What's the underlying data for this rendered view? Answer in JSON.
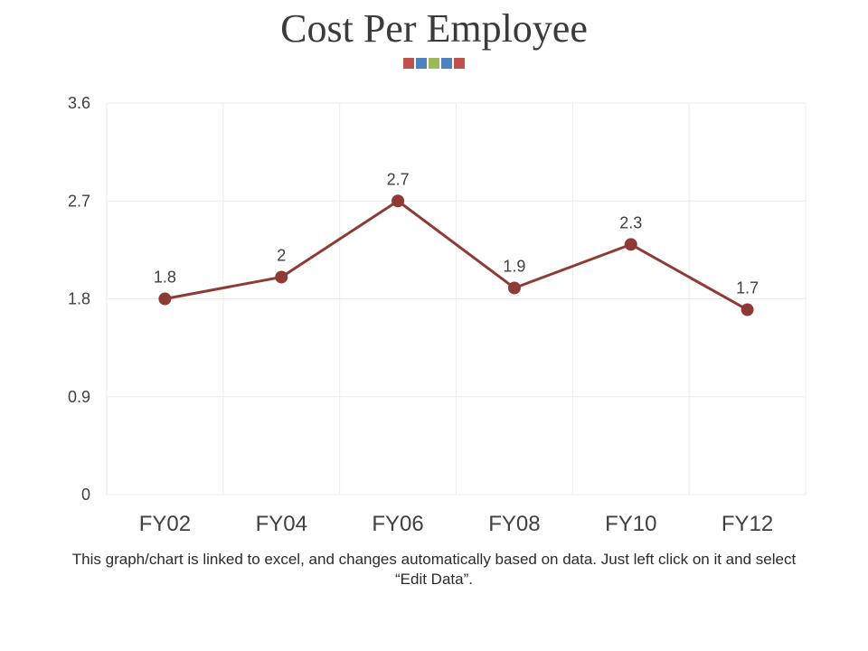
{
  "title": "Cost Per Employee",
  "decor_colors": [
    "#c0504d",
    "#4f81bd",
    "#9bbb59",
    "#4f81bd",
    "#c0504d"
  ],
  "colors": {
    "line": "#8e3b36",
    "grid": "#ececec",
    "text": "#404040"
  },
  "chart_data": {
    "type": "line",
    "title": "Cost Per Employee",
    "categories": [
      "FY02",
      "FY04",
      "FY06",
      "FY08",
      "FY10",
      "FY12"
    ],
    "series": [
      {
        "name": "Cost Per Employee",
        "values": [
          1.8,
          2,
          2.7,
          1.9,
          2.3,
          1.7
        ]
      }
    ],
    "data_labels": [
      "1.8",
      "2",
      "2.7",
      "1.9",
      "2.3",
      "1.7"
    ],
    "yticks": [
      0,
      0.9,
      1.8,
      2.7,
      3.6
    ],
    "ytick_labels": [
      "0",
      "0.9",
      "1.8",
      "2.7",
      "3.6"
    ],
    "ylim": [
      0,
      3.6
    ],
    "xlabel": "",
    "ylabel": "",
    "grid": true,
    "legend": "none"
  },
  "footnote": "This graph/chart is linked to excel, and changes automatically based on data. Just left click on it and select “Edit Data”."
}
